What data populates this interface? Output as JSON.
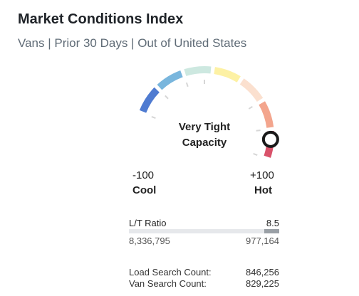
{
  "header": {
    "title": "Market Conditions Index",
    "subtitle": "Vans | Prior 30 Days | Out of United States"
  },
  "gauge": {
    "status_line1": "Very Tight",
    "status_line2": "Capacity",
    "min_value": "-100",
    "max_value": "+100",
    "min_label": "Cool",
    "max_label": "Hot",
    "segment_colors": [
      "#4f7bd1",
      "#79b6dd",
      "#cde8e0",
      "#fdf1a4",
      "#fbe0cf",
      "#f3a58d",
      "#d9526a"
    ],
    "indicator_value": 100
  },
  "ratio": {
    "label": "L/T Ratio",
    "value": "8.5",
    "left_count": "8,336,795",
    "right_count": "977,164"
  },
  "stats": [
    {
      "label": "Load Search Count:",
      "value": "846,256"
    },
    {
      "label": "Van Search Count:",
      "value": "829,225"
    }
  ]
}
